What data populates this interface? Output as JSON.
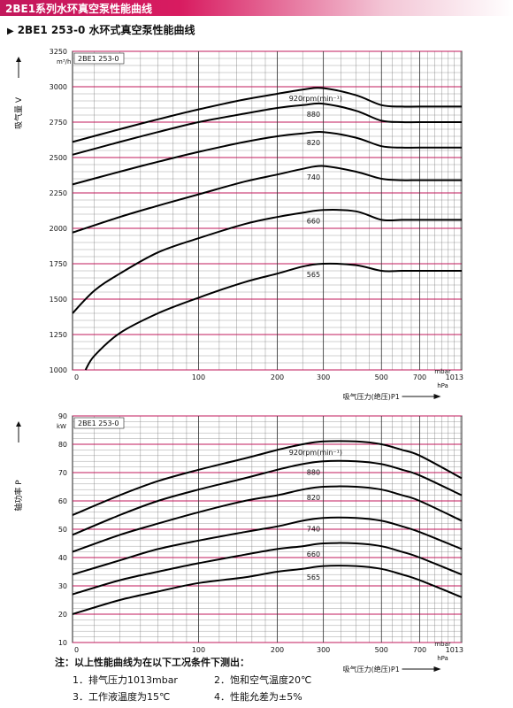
{
  "header": {
    "title": "2BE1系列水环真空泵性能曲线"
  },
  "subtitle": "2BE1 253-0 水环式真空泵性能曲线",
  "colors": {
    "header": "#d81b60",
    "grid_major": "#c2185b",
    "grid_minor": "#7a7a7a",
    "curve": "#000000"
  },
  "chart_data": [
    {
      "type": "line",
      "inset_label": "2BE1 253-0",
      "ylabel": "吸气量 V",
      "yunit": "m³/h",
      "xlabel": "吸气压力(绝压)P1",
      "xunit_top": "mbar",
      "xunit_bottom": "hPa",
      "x_scale": "log",
      "xlim": [
        33,
        1013
      ],
      "ylim": [
        1000,
        3250
      ],
      "x_ticks": [
        100,
        200,
        300,
        500,
        700,
        1013
      ],
      "x_tick_labels": [
        "100",
        "200",
        "300",
        "500",
        "700",
        "1013"
      ],
      "y_ticks": [
        1000,
        1250,
        1500,
        1750,
        2000,
        2250,
        2500,
        2750,
        3000,
        3250
      ],
      "y_tick_labels": [
        "1000",
        "1250",
        "1500",
        "1750",
        "2000",
        "2250",
        "2500",
        "2750",
        "3000",
        "3250"
      ],
      "series": [
        {
          "name": "920rpm(min⁻¹)",
          "x": [
            33,
            50,
            70,
            100,
            150,
            200,
            250,
            300,
            400,
            500,
            600,
            700,
            1013
          ],
          "y": [
            2610,
            2700,
            2770,
            2840,
            2910,
            2950,
            2980,
            2990,
            2940,
            2870,
            2860,
            2860,
            2860
          ]
        },
        {
          "name": "880",
          "x": [
            33,
            50,
            70,
            100,
            150,
            200,
            250,
            300,
            400,
            500,
            600,
            700,
            1013
          ],
          "y": [
            2520,
            2610,
            2680,
            2750,
            2810,
            2850,
            2870,
            2880,
            2830,
            2760,
            2750,
            2750,
            2750
          ]
        },
        {
          "name": "820",
          "x": [
            33,
            50,
            70,
            100,
            150,
            200,
            250,
            300,
            400,
            500,
            600,
            700,
            1013
          ],
          "y": [
            2310,
            2400,
            2470,
            2540,
            2610,
            2650,
            2670,
            2680,
            2640,
            2580,
            2570,
            2570,
            2570
          ]
        },
        {
          "name": "740",
          "x": [
            33,
            50,
            70,
            100,
            150,
            200,
            250,
            300,
            400,
            500,
            600,
            700,
            1013
          ],
          "y": [
            1970,
            2080,
            2160,
            2240,
            2330,
            2380,
            2420,
            2440,
            2400,
            2350,
            2340,
            2340,
            2340
          ]
        },
        {
          "name": "660",
          "x": [
            33,
            40,
            50,
            70,
            100,
            150,
            200,
            250,
            300,
            400,
            500,
            600,
            700,
            1013
          ],
          "y": [
            1400,
            1560,
            1680,
            1830,
            1930,
            2030,
            2080,
            2110,
            2130,
            2120,
            2060,
            2060,
            2060,
            2060
          ]
        },
        {
          "name": "565",
          "x": [
            37,
            40,
            50,
            70,
            100,
            150,
            200,
            250,
            300,
            400,
            500,
            600,
            700,
            1013
          ],
          "y": [
            1000,
            1100,
            1260,
            1400,
            1510,
            1620,
            1680,
            1730,
            1750,
            1740,
            1700,
            1700,
            1700,
            1700
          ]
        }
      ]
    },
    {
      "type": "line",
      "inset_label": "2BE1 253-0",
      "ylabel": "轴功率 P",
      "yunit": "kW",
      "xlabel": "吸气压力(绝压)P1",
      "xunit_top": "mbar",
      "xunit_bottom": "hPa",
      "x_scale": "log",
      "xlim": [
        33,
        1013
      ],
      "ylim": [
        10,
        90
      ],
      "x_ticks": [
        100,
        200,
        300,
        500,
        700,
        1013
      ],
      "x_tick_labels": [
        "100",
        "200",
        "300",
        "500",
        "700",
        "1013"
      ],
      "y_ticks": [
        10,
        20,
        30,
        40,
        50,
        60,
        70,
        80,
        90
      ],
      "y_tick_labels": [
        "10",
        "20",
        "30",
        "40",
        "50",
        "60",
        "70",
        "80",
        "90"
      ],
      "series": [
        {
          "name": "920rpm(min⁻¹)",
          "x": [
            33,
            50,
            70,
            100,
            150,
            200,
            250,
            300,
            400,
            500,
            600,
            700,
            1013
          ],
          "y": [
            55,
            62,
            67,
            71,
            75,
            78,
            80,
            81,
            81,
            80,
            78,
            76,
            68
          ]
        },
        {
          "name": "880",
          "x": [
            33,
            50,
            70,
            100,
            150,
            200,
            250,
            300,
            400,
            500,
            600,
            700,
            1013
          ],
          "y": [
            48,
            55,
            60,
            64,
            68,
            71,
            73,
            74,
            74,
            73,
            71,
            69,
            62
          ]
        },
        {
          "name": "820",
          "x": [
            33,
            50,
            70,
            100,
            150,
            200,
            250,
            300,
            400,
            500,
            600,
            700,
            1013
          ],
          "y": [
            42,
            48,
            52,
            56,
            60,
            62,
            64,
            65,
            65,
            64,
            62,
            60,
            53
          ]
        },
        {
          "name": "740",
          "x": [
            33,
            50,
            70,
            100,
            150,
            200,
            250,
            300,
            400,
            500,
            600,
            700,
            1013
          ],
          "y": [
            34,
            39,
            43,
            46,
            49,
            51,
            53,
            54,
            54,
            53,
            51,
            49,
            43
          ]
        },
        {
          "name": "660",
          "x": [
            33,
            50,
            70,
            100,
            150,
            200,
            250,
            300,
            400,
            500,
            600,
            700,
            1013
          ],
          "y": [
            27,
            32,
            35,
            38,
            41,
            43,
            44,
            45,
            45,
            44,
            42,
            40,
            34
          ]
        },
        {
          "name": "565",
          "x": [
            33,
            50,
            70,
            100,
            150,
            200,
            250,
            300,
            400,
            500,
            600,
            700,
            1013
          ],
          "y": [
            20,
            25,
            28,
            31,
            33,
            35,
            36,
            37,
            37,
            36,
            34,
            32,
            26
          ]
        }
      ]
    }
  ],
  "notes": {
    "heading": "注：以上性能曲线为在以下工况条件下测出：",
    "items": [
      "1．排气压力1013mbar",
      "2．饱和空气温度20℃",
      "3．工作液温度为15℃",
      "4．性能允差为±5%"
    ]
  }
}
